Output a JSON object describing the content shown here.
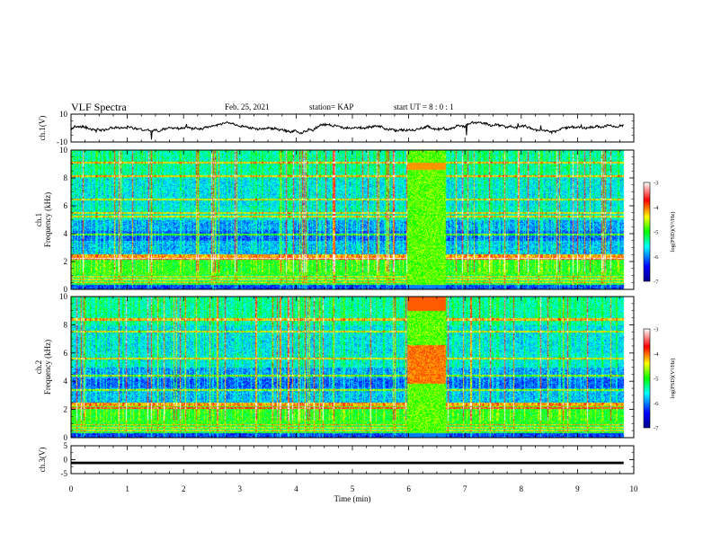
{
  "header": {
    "title": "VLF Spectra",
    "date": "Feb. 25, 2021",
    "station": "station= KAP",
    "start_ut": "start  UT =  8 : 0  : 1"
  },
  "chart_data": [
    {
      "type": "line",
      "name": "ch1-waveform",
      "ylabel": "ch.1(V)",
      "ylim": [
        -10,
        10
      ],
      "y_ticks": [
        "10",
        "-10"
      ],
      "xlim": [
        0,
        10
      ]
    },
    {
      "type": "heatmap",
      "name": "ch1-spectrogram",
      "ylabel": "ch.1\nFrequency (kHz)",
      "ylim": [
        0,
        10
      ],
      "y_ticks": [
        "0",
        "2",
        "4",
        "6",
        "8",
        "10"
      ],
      "xlim": [
        0,
        10
      ],
      "data_end_min": 9.82,
      "burst_min": [
        5.97,
        6.65
      ],
      "colorbar": {
        "label": "log(PSD)(V²/Hz)",
        "range": [
          -7,
          -3
        ],
        "ticks": [
          "-3",
          "-4",
          "-5",
          "-6",
          "-7"
        ]
      }
    },
    {
      "type": "heatmap",
      "name": "ch2-spectrogram",
      "ylabel": "ch.2\nFrequency (kHz)",
      "ylim": [
        0,
        10
      ],
      "y_ticks": [
        "0",
        "2",
        "4",
        "6",
        "8",
        "10"
      ],
      "xlim": [
        0,
        10
      ],
      "data_end_min": 9.82,
      "burst_min": [
        5.97,
        6.65
      ],
      "colorbar": {
        "label": "log(PSD)(V²/Hz)",
        "range": [
          -7,
          -3
        ],
        "ticks": [
          "-3",
          "-4",
          "-5",
          "-6",
          "-7"
        ]
      }
    },
    {
      "type": "line",
      "name": "ch3-waveform",
      "ylabel": "ch.3(V)",
      "ylim": [
        -5,
        5
      ],
      "y_ticks": [
        "5",
        "0",
        "-5"
      ],
      "xlim": [
        0,
        10
      ],
      "xlabel": "Time  (min)",
      "x_ticks": [
        "0",
        "1",
        "2",
        "3",
        "4",
        "5",
        "6",
        "7",
        "8",
        "9",
        "10"
      ]
    }
  ]
}
